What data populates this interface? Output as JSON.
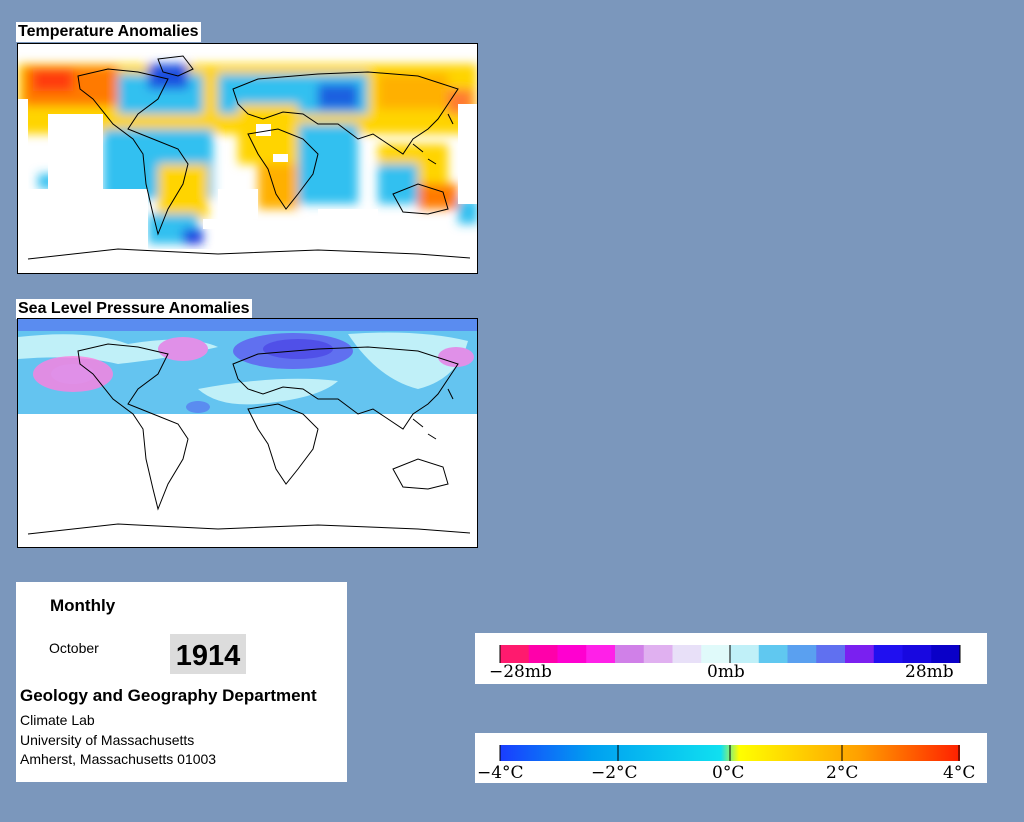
{
  "maps": {
    "temperature": {
      "title": "Temperature Anomalies"
    },
    "pressure": {
      "title": "Sea Level Pressure Anomalies"
    }
  },
  "info": {
    "period": "Monthly",
    "month": "October",
    "year": "1914",
    "department": "Geology and Geography Department",
    "lab": "Climate Lab",
    "university": "University of Massachusetts",
    "address": "Amherst, Massachusetts 01003"
  },
  "legends": {
    "pressure": {
      "labels": [
        "−28mb",
        "0mb",
        "28mb"
      ],
      "colors": [
        "#ff1a6e",
        "#ff00aa",
        "#ff00d0",
        "#ff20e8",
        "#d080e8",
        "#e0b0f0",
        "#e8e0f8",
        "#e0fafa",
        "#c0f0f8",
        "#60c8f0",
        "#5aa0f0",
        "#6070f0",
        "#7a20f0",
        "#2010f0",
        "#1808e0",
        "#0a00c8"
      ]
    },
    "temperature": {
      "labels": [
        "−4°C",
        "−2°C",
        "0°C",
        "2°C",
        "4°C"
      ],
      "gradient": [
        "#1a3dff",
        "#00a0f0",
        "#10e0f0",
        "#ffff00",
        "#ffa000",
        "#ff2000"
      ]
    }
  }
}
